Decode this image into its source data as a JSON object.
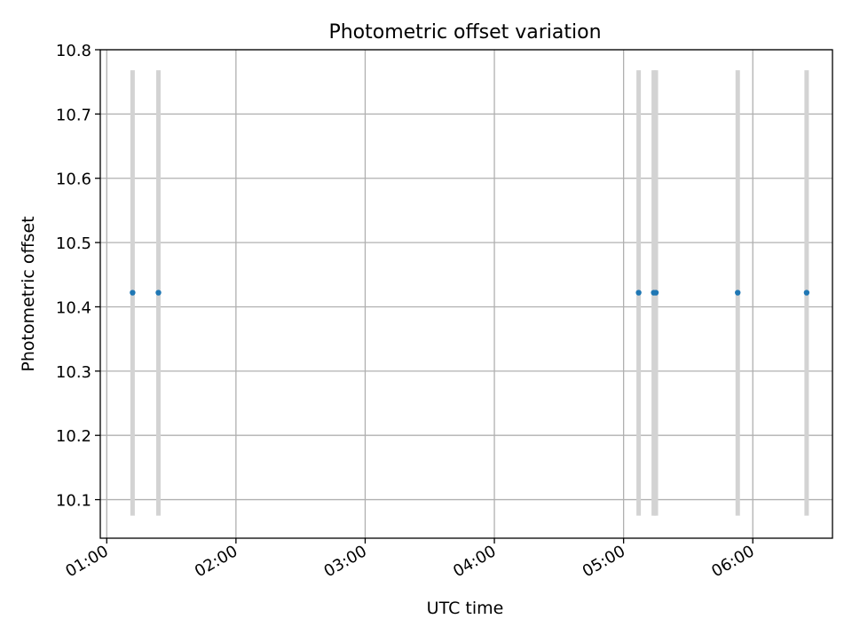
{
  "chart_data": {
    "type": "scatter",
    "title": "Photometric offset variation",
    "xlabel": "UTC time",
    "ylabel": "Photometric offset",
    "x_type": "time",
    "xlim": [
      "00:57",
      "06:37"
    ],
    "ylim": [
      10.04,
      10.8
    ],
    "grid": true,
    "x_ticks": [
      "01:00",
      "02:00",
      "03:00",
      "04:00",
      "05:00",
      "06:00"
    ],
    "y_ticks": [
      "10.1",
      "10.2",
      "10.3",
      "10.4",
      "10.5",
      "10.6",
      "10.7",
      "10.8"
    ],
    "series": [
      {
        "x": [
          "01:12",
          "01:24",
          "05:07",
          "05:14",
          "05:15",
          "05:53",
          "06:25"
        ],
        "y": [
          10.422,
          10.422,
          10.422,
          10.422,
          10.422,
          10.422,
          10.422
        ],
        "error_low": 10.075,
        "error_high": 10.768,
        "color": "#1f77b4",
        "error_color": "#d3d3d3"
      }
    ]
  }
}
